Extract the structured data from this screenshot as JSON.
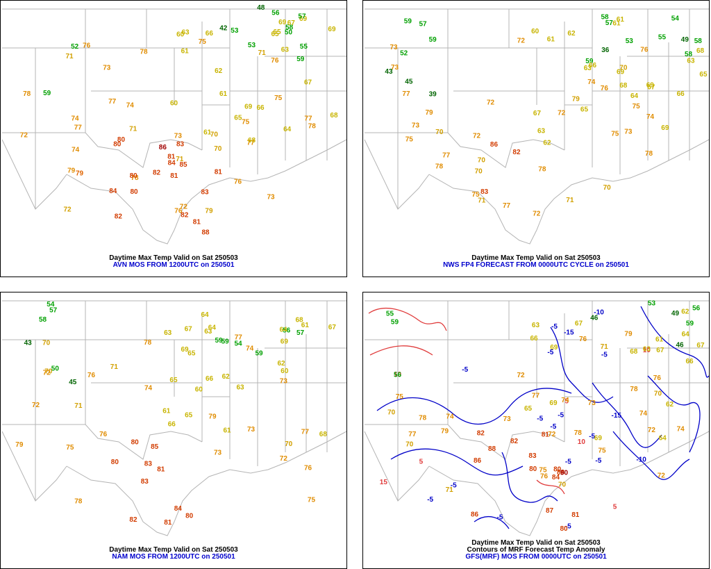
{
  "colors": {
    "border": "#000000",
    "map_lines": "#b4b4b4",
    "green": "#00a000",
    "darkgreen": "#006400",
    "yellowgreen": "#9aa800",
    "yellow": "#c8b400",
    "gold": "#d2a000",
    "orange": "#e08c00",
    "darkorange": "#e06400",
    "red": "#d23c00",
    "darkred": "#a00000",
    "contour_neg": "#0000c8",
    "contour_pos": "#e03c3c",
    "caption_source": "#0000cc"
  },
  "panels": [
    {
      "id": "avn",
      "title": "Daytime Max Temp Valid on Sat 250503",
      "source": "AVN MOS FROM 1200UTC on 250501",
      "extra": ""
    },
    {
      "id": "nws",
      "title": "Daytime Max Temp Valid on Sat 250503",
      "source": "NWS FP4 FORECAST FROM 0000UTC CYCLE on 250501",
      "extra": ""
    },
    {
      "id": "nam",
      "title": "Daytime Max Temp Valid on Sat 250503",
      "source": "NAM MOS FROM 1200UTC on 250501",
      "extra": ""
    },
    {
      "id": "gfs",
      "title": "Daytime Max Temp Valid on Sat 250503",
      "source": "GFS(MRF) MOS FROM 0000UTC on 250501",
      "extra": "Contours of MRF Forecast Temp Anomaly"
    }
  ],
  "stations": {
    "avn": [
      [
        "79",
        "#d2a000"
      ],
      [
        "71",
        "#d2a000"
      ],
      [
        "75",
        "#e08c00"
      ],
      [
        "78",
        "#e08c00"
      ],
      [
        "76",
        "#e08c00"
      ],
      [
        "73",
        "#e08c00"
      ],
      [
        "69",
        "#c8b400"
      ],
      [
        "61",
        "#c8b400"
      ],
      [
        "59",
        "#00a000"
      ],
      [
        "58",
        "#00a000"
      ],
      [
        "52",
        "#00a000"
      ],
      [
        "53",
        "#00a000"
      ],
      [
        "62",
        "#c8b400"
      ],
      [
        "69",
        "#c8b400"
      ],
      [
        "82",
        "#d23c00"
      ],
      [
        "74",
        "#e08c00"
      ],
      [
        "53",
        "#00a000"
      ],
      [
        "55",
        "#00a000"
      ],
      [
        "48",
        "#006400"
      ],
      [
        "42",
        "#006400"
      ],
      [
        "50",
        "#00a000"
      ],
      [
        "81",
        "#d23c00"
      ],
      [
        "82",
        "#d23c00"
      ],
      [
        "77",
        "#e08c00"
      ],
      [
        "72",
        "#e08c00"
      ],
      [
        "65",
        "#c8b400"
      ],
      [
        "66",
        "#c8b400"
      ],
      [
        "71",
        "#d2a000"
      ],
      [
        "76",
        "#e08c00"
      ],
      [
        "59",
        "#00a000"
      ],
      [
        "68",
        "#c8b400"
      ],
      [
        "70",
        "#d2a000"
      ],
      [
        "75",
        "#e08c00"
      ],
      [
        "77",
        "#e08c00"
      ],
      [
        "73",
        "#e08c00"
      ],
      [
        "78",
        "#e08c00"
      ],
      [
        "80",
        "#d23c00"
      ],
      [
        "81",
        "#d23c00"
      ],
      [
        "85",
        "#d23c00"
      ],
      [
        "83",
        "#d23c00"
      ],
      [
        "88",
        "#d23c00"
      ],
      [
        "86",
        "#a00000"
      ],
      [
        "84",
        "#d23c00"
      ],
      [
        "79",
        "#e06400"
      ],
      [
        "81",
        "#d23c00"
      ],
      [
        "80",
        "#d23c00"
      ],
      [
        "77",
        "#e08c00"
      ],
      [
        "72",
        "#e08c00"
      ],
      [
        "69",
        "#c8b400"
      ],
      [
        "65",
        "#c8b400"
      ],
      [
        "63",
        "#c8b400"
      ],
      [
        "60",
        "#c8b400"
      ],
      [
        "71",
        "#d2a000"
      ],
      [
        "74",
        "#e08c00"
      ],
      [
        "76",
        "#e08c00"
      ],
      [
        "78",
        "#e08c00"
      ],
      [
        "80",
        "#d23c00"
      ],
      [
        "82",
        "#d23c00"
      ],
      [
        "84",
        "#d23c00"
      ],
      [
        "75",
        "#e08c00"
      ],
      [
        "73",
        "#e08c00"
      ],
      [
        "70",
        "#d2a000"
      ],
      [
        "67",
        "#c8b400"
      ],
      [
        "64",
        "#c8b400"
      ],
      [
        "61",
        "#c8b400"
      ],
      [
        "57",
        "#00a000"
      ],
      [
        "56",
        "#00a000"
      ],
      [
        "60",
        "#c8b400"
      ],
      [
        "66",
        "#c8b400"
      ],
      [
        "68",
        "#c8b400"
      ],
      [
        "72",
        "#d2a000"
      ],
      [
        "77",
        "#e08c00"
      ],
      [
        "79",
        "#e08c00"
      ],
      [
        "81",
        "#d23c00"
      ],
      [
        "83",
        "#d23c00"
      ],
      [
        "80",
        "#d23c00"
      ],
      [
        "78",
        "#e08c00"
      ],
      [
        "76",
        "#e08c00"
      ],
      [
        "74",
        "#e08c00"
      ],
      [
        "71",
        "#d2a000"
      ],
      [
        "69",
        "#c8b400"
      ],
      [
        "67",
        "#c8b400"
      ],
      [
        "65",
        "#c8b400"
      ],
      [
        "63",
        "#c8b400"
      ],
      [
        "61",
        "#c8b400"
      ]
    ],
    "nws": [
      [
        "79",
        "#d2a000"
      ],
      [
        "76",
        "#e08c00"
      ],
      [
        "72",
        "#e08c00"
      ],
      [
        "70",
        "#d2a000"
      ],
      [
        "73",
        "#e08c00"
      ],
      [
        "75",
        "#e08c00"
      ],
      [
        "71",
        "#d2a000"
      ],
      [
        "69",
        "#c8b400"
      ],
      [
        "61",
        "#c8b400"
      ],
      [
        "58",
        "#00a000"
      ],
      [
        "53",
        "#00a000"
      ],
      [
        "52",
        "#00a000"
      ],
      [
        "57",
        "#00a000"
      ],
      [
        "59",
        "#00a000"
      ],
      [
        "86",
        "#d23c00"
      ],
      [
        "49",
        "#006400"
      ],
      [
        "45",
        "#006400"
      ],
      [
        "39",
        "#006400"
      ],
      [
        "36",
        "#006400"
      ],
      [
        "43",
        "#006400"
      ],
      [
        "54",
        "#00a000"
      ],
      [
        "59",
        "#00a000"
      ],
      [
        "58",
        "#00a000"
      ],
      [
        "61",
        "#c8b400"
      ],
      [
        "55",
        "#00a000"
      ],
      [
        "63",
        "#c8b400"
      ],
      [
        "66",
        "#c8b400"
      ],
      [
        "70",
        "#d2a000"
      ],
      [
        "72",
        "#e08c00"
      ],
      [
        "74",
        "#e08c00"
      ],
      [
        "77",
        "#e08c00"
      ],
      [
        "82",
        "#d23c00"
      ],
      [
        "83",
        "#d23c00"
      ],
      [
        "79",
        "#e08c00"
      ],
      [
        "78",
        "#e08c00"
      ],
      [
        "77",
        "#e08c00"
      ],
      [
        "73",
        "#e08c00"
      ],
      [
        "72",
        "#e08c00"
      ],
      [
        "75",
        "#e08c00"
      ],
      [
        "70",
        "#d2a000"
      ],
      [
        "68",
        "#c8b400"
      ],
      [
        "65",
        "#c8b400"
      ],
      [
        "63",
        "#c8b400"
      ],
      [
        "60",
        "#c8b400"
      ],
      [
        "58",
        "#00a000"
      ],
      [
        "57",
        "#00a000"
      ],
      [
        "59",
        "#00a000"
      ],
      [
        "62",
        "#c8b400"
      ],
      [
        "67",
        "#c8b400"
      ],
      [
        "69",
        "#c8b400"
      ],
      [
        "71",
        "#d2a000"
      ],
      [
        "74",
        "#e08c00"
      ],
      [
        "76",
        "#e08c00"
      ],
      [
        "78",
        "#e08c00"
      ],
      [
        "75",
        "#e08c00"
      ],
      [
        "73",
        "#e08c00"
      ],
      [
        "72",
        "#e08c00"
      ],
      [
        "70",
        "#d2a000"
      ],
      [
        "68",
        "#c8b400"
      ],
      [
        "66",
        "#c8b400"
      ],
      [
        "64",
        "#c8b400"
      ],
      [
        "62",
        "#c8b400"
      ],
      [
        "61",
        "#c8b400"
      ],
      [
        "63",
        "#c8b400"
      ],
      [
        "65",
        "#c8b400"
      ],
      [
        "67",
        "#c8b400"
      ],
      [
        "69",
        "#c8b400"
      ],
      [
        "70",
        "#d2a000"
      ],
      [
        "72",
        "#e08c00"
      ],
      [
        "73",
        "#e08c00"
      ],
      [
        "75",
        "#e08c00"
      ],
      [
        "77",
        "#e08c00"
      ],
      [
        "78",
        "#e08c00"
      ]
    ],
    "nam": [
      [
        "73",
        "#e08c00"
      ],
      [
        "71",
        "#d2a000"
      ],
      [
        "75",
        "#e08c00"
      ],
      [
        "76",
        "#e08c00"
      ],
      [
        "73",
        "#e08c00"
      ],
      [
        "70",
        "#d2a000"
      ],
      [
        "68",
        "#c8b400"
      ],
      [
        "64",
        "#c8b400"
      ],
      [
        "60",
        "#c8b400"
      ],
      [
        "59",
        "#00a000"
      ],
      [
        "63",
        "#c8b400"
      ],
      [
        "59",
        "#00a000"
      ],
      [
        "62",
        "#c8b400"
      ],
      [
        "80",
        "#d23c00"
      ],
      [
        "63",
        "#c8b400"
      ],
      [
        "50",
        "#00a000"
      ],
      [
        "54",
        "#00a000"
      ],
      [
        "45",
        "#006400"
      ],
      [
        "56",
        "#00a000"
      ],
      [
        "43",
        "#006400"
      ],
      [
        "54",
        "#00a000"
      ],
      [
        "57",
        "#00a000"
      ],
      [
        "58",
        "#00a000"
      ],
      [
        "61",
        "#c8b400"
      ],
      [
        "65",
        "#c8b400"
      ],
      [
        "66",
        "#c8b400"
      ],
      [
        "69",
        "#c8b400"
      ],
      [
        "72",
        "#e08c00"
      ],
      [
        "74",
        "#e08c00"
      ],
      [
        "77",
        "#e08c00"
      ],
      [
        "78",
        "#e08c00"
      ],
      [
        "80",
        "#d23c00"
      ],
      [
        "82",
        "#d23c00"
      ],
      [
        "84",
        "#d23c00"
      ],
      [
        "85",
        "#d23c00"
      ],
      [
        "83",
        "#d23c00"
      ],
      [
        "81",
        "#d23c00"
      ],
      [
        "79",
        "#e08c00"
      ],
      [
        "76",
        "#e08c00"
      ],
      [
        "73",
        "#e08c00"
      ],
      [
        "71",
        "#d2a000"
      ],
      [
        "68",
        "#c8b400"
      ],
      [
        "65",
        "#c8b400"
      ],
      [
        "61",
        "#c8b400"
      ],
      [
        "59",
        "#00a000"
      ],
      [
        "57",
        "#00a000"
      ],
      [
        "60",
        "#c8b400"
      ],
      [
        "64",
        "#c8b400"
      ],
      [
        "67",
        "#c8b400"
      ],
      [
        "70",
        "#d2a000"
      ],
      [
        "72",
        "#e08c00"
      ],
      [
        "75",
        "#e08c00"
      ],
      [
        "77",
        "#e08c00"
      ],
      [
        "79",
        "#e08c00"
      ],
      [
        "81",
        "#d23c00"
      ],
      [
        "83",
        "#d23c00"
      ],
      [
        "80",
        "#d23c00"
      ],
      [
        "78",
        "#e08c00"
      ],
      [
        "76",
        "#e08c00"
      ],
      [
        "74",
        "#e08c00"
      ],
      [
        "72",
        "#e08c00"
      ],
      [
        "70",
        "#d2a000"
      ],
      [
        "69",
        "#c8b400"
      ],
      [
        "67",
        "#c8b400"
      ],
      [
        "66",
        "#c8b400"
      ],
      [
        "64",
        "#c8b400"
      ],
      [
        "62",
        "#c8b400"
      ],
      [
        "61",
        "#c8b400"
      ],
      [
        "63",
        "#c8b400"
      ],
      [
        "65",
        "#c8b400"
      ]
    ],
    "gfs": [
      [
        "81",
        "#d23c00"
      ],
      [
        "75",
        "#e08c00"
      ],
      [
        "78",
        "#e08c00"
      ],
      [
        "74",
        "#e08c00"
      ],
      [
        "73",
        "#e08c00"
      ],
      [
        "72",
        "#e08c00"
      ],
      [
        "70",
        "#d2a000"
      ],
      [
        "63",
        "#c8b400"
      ],
      [
        "55",
        "#00a000"
      ],
      [
        "56",
        "#00a000"
      ],
      [
        "59",
        "#00a000"
      ],
      [
        "46",
        "#006400"
      ],
      [
        "56",
        "#00a000"
      ],
      [
        "53",
        "#00a000"
      ],
      [
        "49",
        "#006400"
      ],
      [
        "46",
        "#006400"
      ],
      [
        "70",
        "#d2a000"
      ],
      [
        "67",
        "#c8b400"
      ],
      [
        "63",
        "#c8b400"
      ],
      [
        "69",
        "#c8b400"
      ],
      [
        "71",
        "#d2a000"
      ],
      [
        "88",
        "#d23c00"
      ],
      [
        "81",
        "#d23c00"
      ],
      [
        "80",
        "#d23c00"
      ],
      [
        "75",
        "#e08c00"
      ],
      [
        "72",
        "#e08c00"
      ],
      [
        "74",
        "#e08c00"
      ],
      [
        "76",
        "#e08c00"
      ],
      [
        "77",
        "#e08c00"
      ],
      [
        "78",
        "#e08c00"
      ],
      [
        "80",
        "#d23c00"
      ],
      [
        "82",
        "#d23c00"
      ],
      [
        "84",
        "#d23c00"
      ],
      [
        "86",
        "#d23c00"
      ],
      [
        "90",
        "#a00000"
      ],
      [
        "87",
        "#d23c00"
      ],
      [
        "83",
        "#d23c00"
      ],
      [
        "88",
        "#d23c00"
      ],
      [
        "86",
        "#d23c00"
      ],
      [
        "82",
        "#d23c00"
      ],
      [
        "79",
        "#e08c00"
      ],
      [
        "76",
        "#e08c00"
      ],
      [
        "74",
        "#e08c00"
      ],
      [
        "72",
        "#e08c00"
      ],
      [
        "70",
        "#d2a000"
      ],
      [
        "68",
        "#c8b400"
      ],
      [
        "66",
        "#c8b400"
      ],
      [
        "64",
        "#c8b400"
      ],
      [
        "61",
        "#c8b400"
      ],
      [
        "59",
        "#00a000"
      ],
      [
        "62",
        "#c8b400"
      ],
      [
        "65",
        "#c8b400"
      ],
      [
        "67",
        "#c8b400"
      ],
      [
        "69",
        "#c8b400"
      ],
      [
        "71",
        "#d2a000"
      ],
      [
        "73",
        "#e08c00"
      ],
      [
        "75",
        "#e08c00"
      ],
      [
        "77",
        "#e08c00"
      ],
      [
        "79",
        "#e08c00"
      ],
      [
        "80",
        "#d23c00"
      ],
      [
        "78",
        "#e08c00"
      ],
      [
        "76",
        "#e08c00"
      ],
      [
        "74",
        "#e08c00"
      ],
      [
        "72",
        "#e08c00"
      ],
      [
        "70",
        "#d2a000"
      ],
      [
        "69",
        "#c8b400"
      ],
      [
        "67",
        "#c8b400"
      ],
      [
        "66",
        "#c8b400"
      ],
      [
        "64",
        "#c8b400"
      ],
      [
        "62",
        "#c8b400"
      ]
    ],
    "gfs_contour_labels": [
      "-5",
      "-5",
      "-5",
      "-5",
      "-10",
      "-15",
      "10",
      "5",
      "-5",
      "-5",
      "5",
      "15",
      "10",
      "5",
      "-10",
      "-5",
      "-5",
      "-5",
      "-5",
      "-5",
      "10",
      "-5",
      "-15",
      "-5",
      "-5"
    ]
  }
}
